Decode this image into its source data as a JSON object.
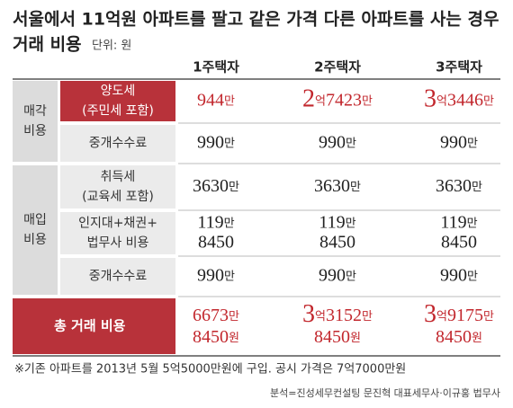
{
  "header": {
    "title": [
      "서울에서 11억원 아파트를 팔고 같은 가격 다른 아파트를 사는 경우",
      "거래 비용"
    ],
    "unit": "단위: 원"
  },
  "table": {
    "columns": [
      "1주택자",
      "2주택자",
      "3주택자"
    ],
    "groups": [
      {
        "label": [
          "매각",
          "비용"
        ],
        "rows": [
          {
            "label": [
              "양도세",
              "(주민세 포함)"
            ],
            "values": [
              [
                "944만"
              ],
              [
                "2억7423만"
              ],
              [
                "3억3446만"
              ]
            ]
          },
          {
            "label": [
              "중개수수료"
            ],
            "values": [
              [
                "990만"
              ],
              [
                "990만"
              ],
              [
                "990만"
              ]
            ]
          }
        ]
      },
      {
        "label": [
          "매입",
          "비용"
        ],
        "rows": [
          {
            "label": [
              "취득세",
              "(교육세 포함)"
            ],
            "values": [
              [
                "3630만"
              ],
              [
                "3630만"
              ],
              [
                "3630만"
              ]
            ]
          },
          {
            "label": [
              "인지대+채권+",
              "법무사 비용"
            ],
            "values": [
              [
                "119만",
                "8450"
              ],
              [
                "119만",
                "8450"
              ],
              [
                "119만",
                "8450"
              ]
            ]
          },
          {
            "label": [
              "중개수수료"
            ],
            "values": [
              [
                "990만"
              ],
              [
                "990만"
              ],
              [
                "990만"
              ]
            ]
          }
        ]
      }
    ],
    "total": {
      "label": "총 거래 비용",
      "values": [
        [
          "6673만",
          "8450원"
        ],
        [
          "3억3152만",
          "8450원"
        ],
        [
          "3억9175만",
          "8450원"
        ]
      ]
    }
  },
  "footnote": "※기존 아파트를 2013년 5월 5억5000만원에 구입. 공시 가격은 7억7000만원",
  "source": "분석=진성세무컨설팅 문진혁 대표세무사·이규홍 법무사"
}
